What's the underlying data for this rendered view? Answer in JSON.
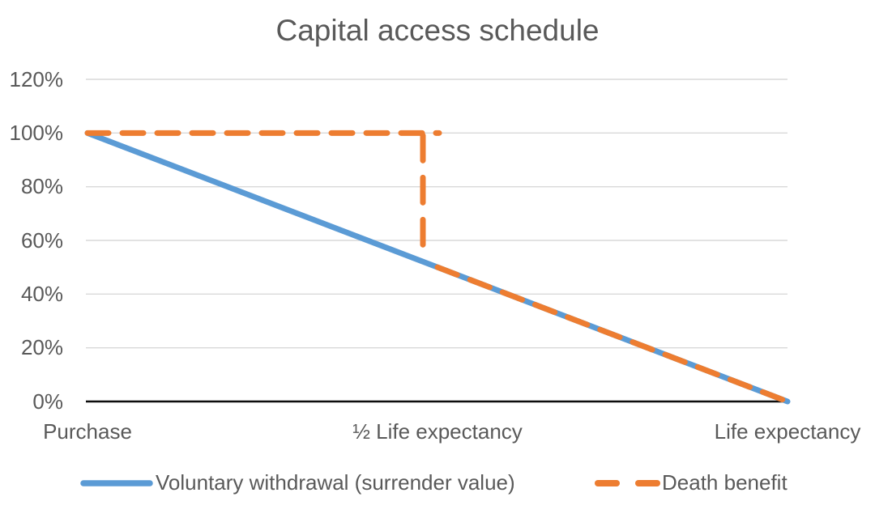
{
  "chart_data": {
    "type": "line",
    "title": "Capital access schedule",
    "xlabel": "",
    "ylabel": "",
    "x_categories": [
      "Purchase",
      "½ Life expectancy",
      "Life expectancy"
    ],
    "y_ticks": [
      {
        "value": 0,
        "label": "0%"
      },
      {
        "value": 20,
        "label": "20%"
      },
      {
        "value": 40,
        "label": "40%"
      },
      {
        "value": 60,
        "label": "60%"
      },
      {
        "value": 80,
        "label": "80%"
      },
      {
        "value": 100,
        "label": "100%"
      },
      {
        "value": 120,
        "label": "120%"
      }
    ],
    "ylim": [
      0,
      120
    ],
    "grid": true,
    "legend_position": "bottom",
    "series": [
      {
        "name": "Voluntary withdrawal (surrender value)",
        "color": "#5B9BD5",
        "line_style": "solid",
        "points": [
          {
            "x": 0,
            "y": 100
          },
          {
            "x": 1,
            "y": 50
          },
          {
            "x": 2,
            "y": 0
          }
        ]
      },
      {
        "name": "Death benefit",
        "color": "#ED7D31",
        "line_style": "dashed",
        "points": [
          {
            "x": 0,
            "y": 100
          },
          {
            "x": 1,
            "y": 100
          },
          {
            "x": 1,
            "y": 50
          },
          {
            "x": 2,
            "y": 0
          }
        ]
      }
    ],
    "styles": {
      "grid_color": "#D9D9D9",
      "axis_color": "#0D0D0D",
      "text_color": "#595959",
      "background": "#FFFFFF"
    }
  }
}
